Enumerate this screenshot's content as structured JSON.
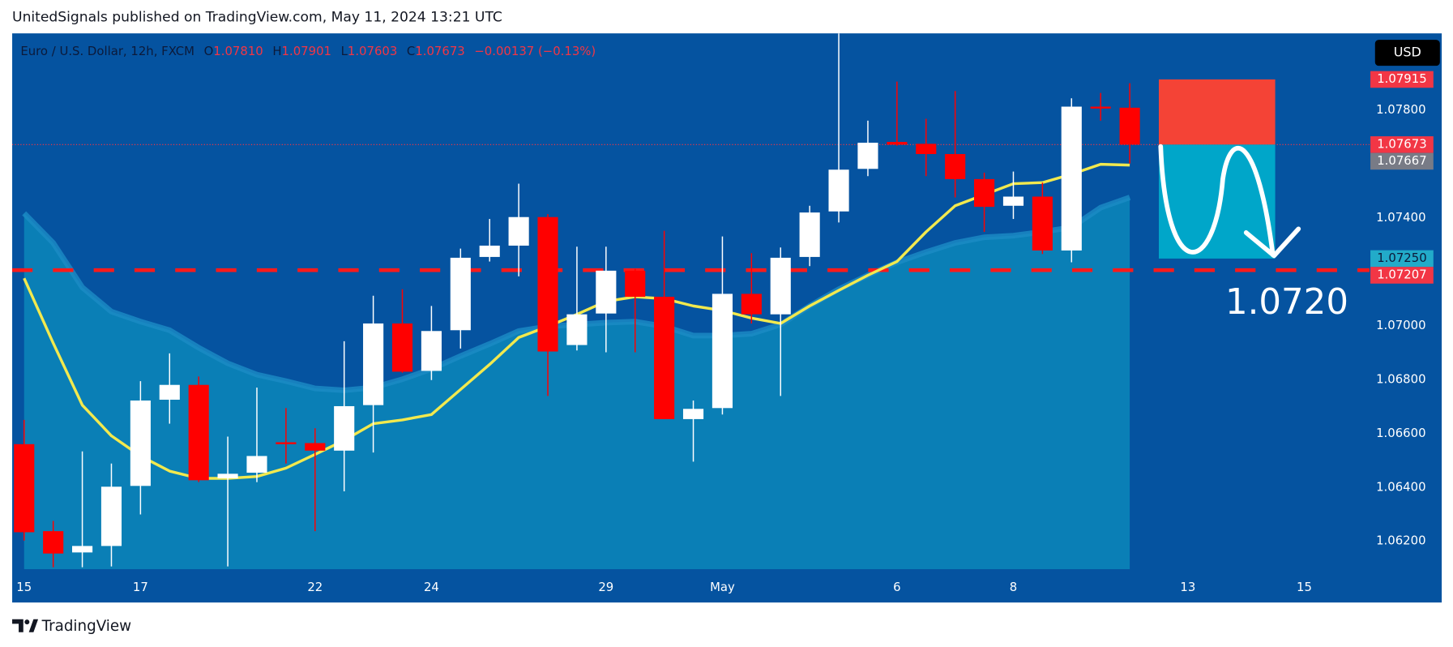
{
  "header": {
    "published": "UnitedSignals published on TradingView.com, May 11, 2024 13:21 UTC"
  },
  "chart_data": {
    "type": "candlestick",
    "symbol": "Euro / U.S. Dollar, 12h, FXCM",
    "legend": [
      {
        "key": "O",
        "value": "1.07810"
      },
      {
        "key": "H",
        "value": "1.07901"
      },
      {
        "key": "L",
        "value": "1.07603"
      },
      {
        "key": "C",
        "value": "1.07673"
      }
    ],
    "change": "−0.00137 (−0.13%)",
    "currency": "USD",
    "up_color": "#ffffff",
    "down_color": "#ff0000",
    "open": [
      1.06561,
      1.06238,
      1.06159,
      1.06183,
      1.06406,
      1.06726,
      1.06781,
      1.06434,
      1.06455,
      1.06568,
      1.06565,
      1.06537,
      1.06706,
      1.07009,
      1.06833,
      1.06984,
      1.07256,
      1.07298,
      1.07404,
      1.06929,
      1.07046,
      1.07205,
      1.07108,
      1.06654,
      1.06695,
      1.07119,
      1.07043,
      1.07256,
      1.07425,
      1.07583,
      1.07683,
      1.07676,
      1.07638,
      1.07545,
      1.07446,
      1.0748,
      1.0728,
      1.07814,
      1.0781
    ],
    "high": [
      1.06651,
      1.06276,
      1.06534,
      1.06489,
      1.06795,
      1.06898,
      1.06812,
      1.06589,
      1.06771,
      1.06695,
      1.0662,
      1.06943,
      1.07112,
      1.07136,
      1.07074,
      1.07287,
      1.07397,
      1.07528,
      1.07415,
      1.07294,
      1.07294,
      1.07212,
      1.07353,
      1.06723,
      1.07332,
      1.0727,
      1.07291,
      1.07446,
      1.08086,
      1.07762,
      1.07907,
      1.07769,
      1.07872,
      1.07569,
      1.07573,
      1.07532,
      1.07845,
      1.07865,
      1.07901
    ],
    "low": [
      1.06203,
      1.06104,
      1.06104,
      1.06107,
      1.063,
      1.06637,
      1.0642,
      1.06107,
      1.0642,
      1.06489,
      1.06238,
      1.06386,
      1.0653,
      1.06826,
      1.06799,
      1.06916,
      1.07239,
      1.07184,
      1.0674,
      1.06909,
      1.06902,
      1.06902,
      1.06654,
      1.06496,
      1.06671,
      1.07009,
      1.0674,
      1.07222,
      1.07384,
      1.07556,
      1.07669,
      1.07556,
      1.07477,
      1.07349,
      1.07397,
      1.07267,
      1.07236,
      1.07762,
      1.07603
    ],
    "close": [
      1.06234,
      1.06155,
      1.06183,
      1.06403,
      1.06723,
      1.06781,
      1.06427,
      1.06451,
      1.06517,
      1.06561,
      1.06537,
      1.06702,
      1.07009,
      1.0683,
      1.06981,
      1.07253,
      1.07298,
      1.07404,
      1.06905,
      1.07043,
      1.07205,
      1.07108,
      1.06654,
      1.06692,
      1.07119,
      1.07043,
      1.07253,
      1.07421,
      1.0758,
      1.0768,
      1.07673,
      1.07638,
      1.07545,
      1.07442,
      1.0748,
      1.0728,
      1.07814,
      1.07807,
      1.07673
    ],
    "overlays": [
      {
        "kind": "area",
        "color": "#1b8cc6",
        "fill": "#0a7fb6",
        "values": [
          1.07418,
          1.07308,
          1.07143,
          1.07053,
          1.07016,
          1.06984,
          1.06919,
          1.06861,
          1.06819,
          1.06795,
          1.06768,
          1.06761,
          1.06771,
          1.06802,
          1.0684,
          1.06888,
          1.06933,
          1.06981,
          1.06998,
          1.07005,
          1.07012,
          1.07016,
          1.06998,
          1.06964,
          1.06964,
          1.06971,
          1.07005,
          1.07074,
          1.07136,
          1.07188,
          1.07236,
          1.07274,
          1.07308,
          1.07329,
          1.07335,
          1.07349,
          1.07366,
          1.07439,
          1.07477
        ]
      },
      {
        "kind": "line",
        "color": "#f2e94e",
        "values": [
          1.07177,
          1.06936,
          1.06706,
          1.06592,
          1.06517,
          1.06461,
          1.06434,
          1.06434,
          1.06441,
          1.06472,
          1.06523,
          1.06575,
          1.06637,
          1.06651,
          1.06671,
          1.06764,
          1.06857,
          1.06957,
          1.06998,
          1.07043,
          1.07091,
          1.07108,
          1.07101,
          1.07074,
          1.07057,
          1.07029,
          1.07009,
          1.07074,
          1.07132,
          1.07188,
          1.07239,
          1.07349,
          1.07446,
          1.07487,
          1.07528,
          1.07532,
          1.07563,
          1.076,
          1.07597
        ]
      }
    ],
    "xlim": [
      -0.41,
      46.24
    ],
    "xticks": [
      {
        "value": 0,
        "label": "15"
      },
      {
        "value": 4,
        "label": "17"
      },
      {
        "value": 10,
        "label": "22"
      },
      {
        "value": 14,
        "label": "24"
      },
      {
        "value": 20,
        "label": "29"
      },
      {
        "value": 24,
        "label": "May"
      },
      {
        "value": 30,
        "label": "6"
      },
      {
        "value": 34,
        "label": "8"
      },
      {
        "value": 40,
        "label": "13"
      },
      {
        "value": 44,
        "label": "15"
      }
    ],
    "ylim": [
      1.06097,
      1.08086
    ],
    "yticks": [
      {
        "value": 1.062,
        "label": "1.06200"
      },
      {
        "value": 1.064,
        "label": "1.06400"
      },
      {
        "value": 1.066,
        "label": "1.06600"
      },
      {
        "value": 1.068,
        "label": "1.06800"
      },
      {
        "value": 1.07,
        "label": "1.07000"
      },
      {
        "value": 1.074,
        "label": "1.07400"
      },
      {
        "value": 1.078,
        "label": "1.07800"
      }
    ],
    "grid": false,
    "price_labels": [
      {
        "value": 1.07915,
        "label": "1.07915",
        "color": "#f23645",
        "text_color": "#ffffff"
      },
      {
        "value": 1.07673,
        "label": "1.07673",
        "color": "#f23645",
        "text_color": "#ffffff"
      },
      {
        "value": 1.07667,
        "label": "1.07667",
        "color": "#787b86",
        "text_color": "#ffffff"
      },
      {
        "value": 1.0725,
        "label": "1.07250",
        "color": "#22abc9",
        "text_color": "#0c1a3a"
      },
      {
        "value": 1.07207,
        "label": "1.07207",
        "color": "#f23645",
        "text_color": "#ffffff"
      }
    ],
    "hline": {
      "value": 1.07207,
      "color": "#ff1a1a"
    },
    "position": {
      "stop": 1.07915,
      "entry": 1.07673,
      "target": 1.0725,
      "stop_color": "#f44336",
      "target_color": "#00a6c9"
    },
    "annotation": "1.0720"
  },
  "footer": {
    "brand": "TradingView"
  }
}
